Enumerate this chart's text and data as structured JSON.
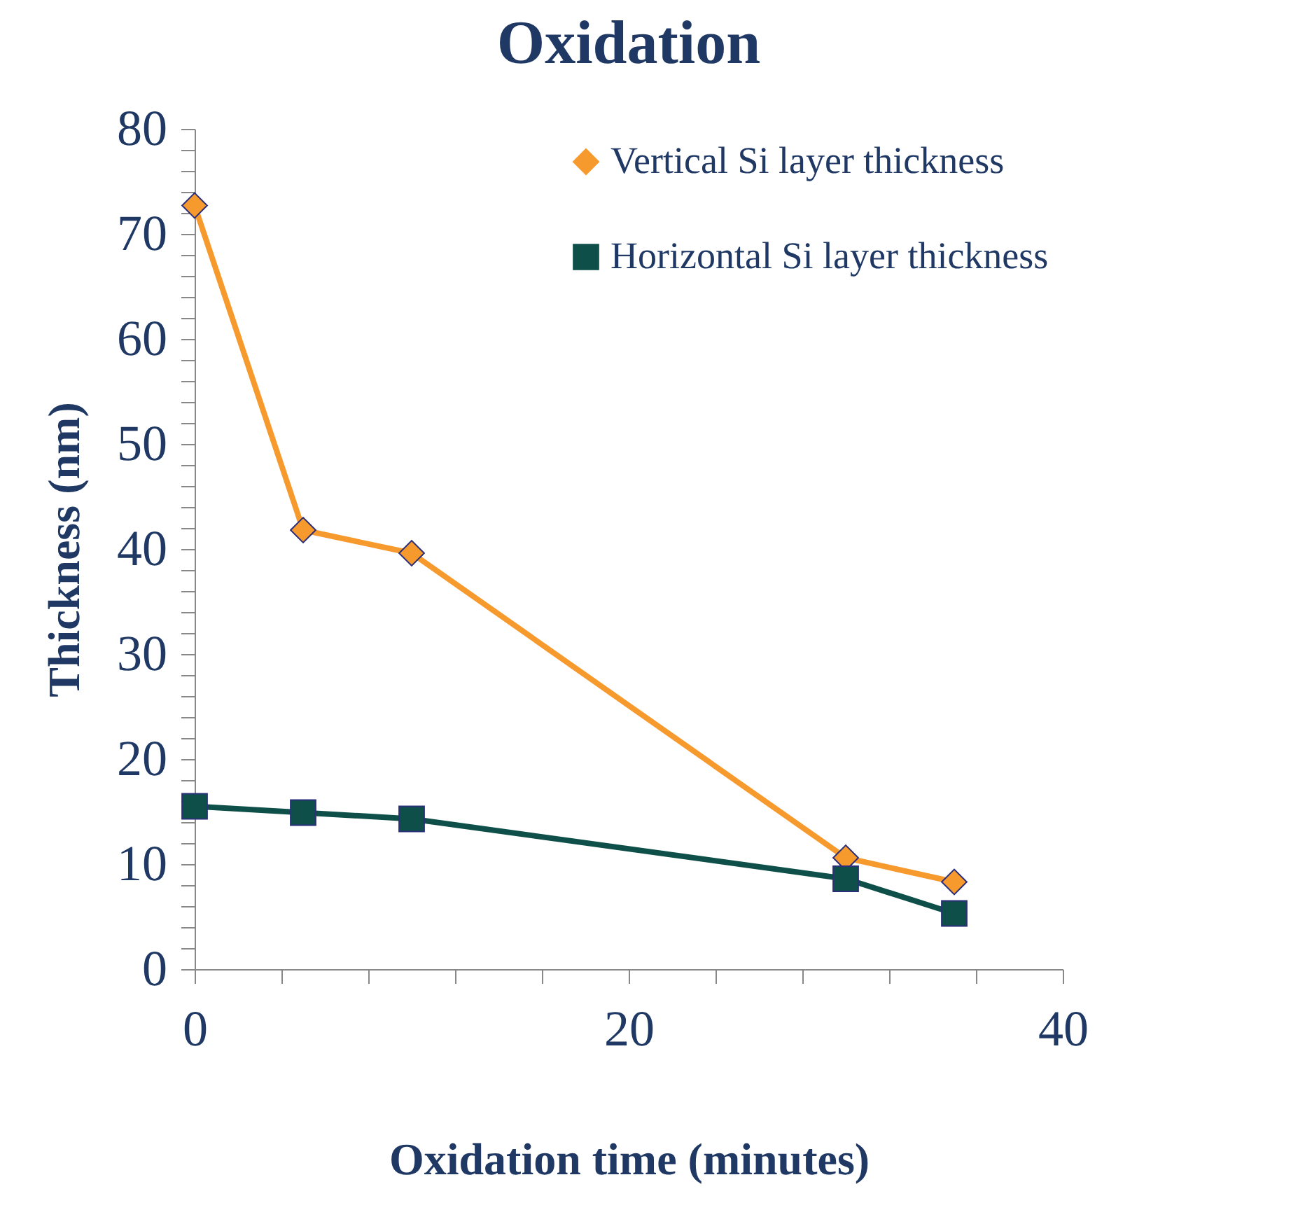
{
  "chart_data": {
    "type": "line",
    "title": "Oxidation",
    "xlabel": "Oxidation time (minutes)",
    "ylabel": "Thickness (nm)",
    "x": [
      0,
      5,
      10,
      30,
      35
    ],
    "series": [
      {
        "name": "Vertical Si layer thickness",
        "color": "#f79a2e",
        "marker": "diamond",
        "values": [
          72.7,
          41.8,
          39.6,
          10.6,
          8.3
        ]
      },
      {
        "name": "Horizontal Si layer thickness",
        "color": "#0e5049",
        "marker": "square",
        "values": [
          15.5,
          14.9,
          14.3,
          8.6,
          5.3
        ]
      }
    ],
    "xlim": [
      0,
      40
    ],
    "xticks": [
      0,
      {
        "value": 4,
        "label": null
      },
      {
        "value": 8,
        "label": null
      },
      {
        "value": 12,
        "label": null
      },
      {
        "value": 16,
        "label": null
      },
      20,
      {
        "value": 24,
        "label": null
      },
      {
        "value": 28,
        "label": null
      },
      {
        "value": 32,
        "label": null
      },
      {
        "value": 36,
        "label": null
      },
      40
    ],
    "ylim": [
      0,
      80
    ],
    "yticks": [
      0,
      {
        "value": 2,
        "label": null
      },
      {
        "value": 4,
        "label": null
      },
      {
        "value": 6,
        "label": null
      },
      {
        "value": 8,
        "label": null
      },
      10,
      {
        "value": 12,
        "label": null
      },
      {
        "value": 14,
        "label": null
      },
      {
        "value": 16,
        "label": null
      },
      {
        "value": 18,
        "label": null
      },
      20,
      {
        "value": 22,
        "label": null
      },
      {
        "value": 24,
        "label": null
      },
      {
        "value": 26,
        "label": null
      },
      {
        "value": 28,
        "label": null
      },
      30,
      {
        "value": 32,
        "label": null
      },
      {
        "value": 34,
        "label": null
      },
      {
        "value": 36,
        "label": null
      },
      {
        "value": 38,
        "label": null
      },
      40,
      {
        "value": 42,
        "label": null
      },
      {
        "value": 44,
        "label": null
      },
      {
        "value": 46,
        "label": null
      },
      {
        "value": 48,
        "label": null
      },
      50,
      {
        "value": 52,
        "label": null
      },
      {
        "value": 54,
        "label": null
      },
      {
        "value": 56,
        "label": null
      },
      {
        "value": 58,
        "label": null
      },
      60,
      {
        "value": 62,
        "label": null
      },
      {
        "value": 64,
        "label": null
      },
      {
        "value": 66,
        "label": null
      },
      {
        "value": 68,
        "label": null
      },
      70,
      {
        "value": 72,
        "label": null
      },
      {
        "value": 74,
        "label": null
      },
      {
        "value": 76,
        "label": null
      },
      {
        "value": 78,
        "label": null
      },
      80
    ],
    "grid": false,
    "legend": "top right",
    "line_style": "solid"
  }
}
